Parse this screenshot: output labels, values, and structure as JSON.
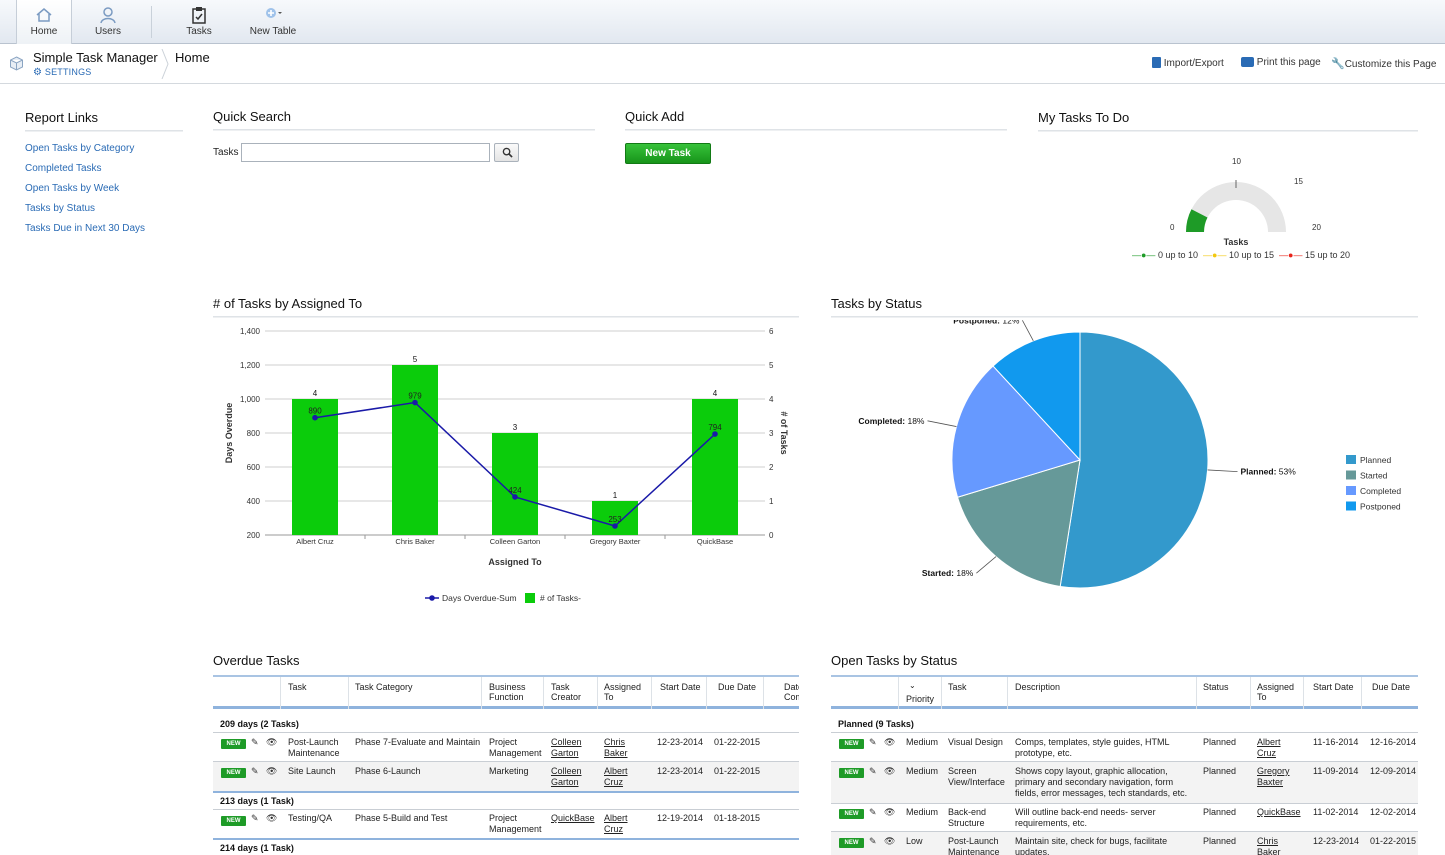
{
  "nav": {
    "items": [
      {
        "label": "Home"
      },
      {
        "label": "Users"
      },
      {
        "label": "Tasks"
      },
      {
        "label": "New Table"
      }
    ]
  },
  "appbar": {
    "app_name": "Simple Task Manager",
    "settings": "SETTINGS",
    "breadcrumb": "Home",
    "links": [
      "Import/Export",
      "Print this page",
      "Customize this Page"
    ]
  },
  "report_links": {
    "title": "Report Links",
    "items": [
      "Open Tasks by Category",
      "Completed Tasks",
      "Open Tasks by Week",
      "Tasks by Status",
      "Tasks Due in Next 30 Days"
    ]
  },
  "quick_search": {
    "title": "Quick Search",
    "label": "Tasks",
    "value": ""
  },
  "quick_add": {
    "title": "Quick Add",
    "button": "New Task"
  },
  "my_tasks": {
    "title": "My Tasks To Do",
    "gauge": {
      "value": 3,
      "min": 0,
      "max": 20,
      "ticks": [
        "0",
        "10",
        "15",
        "20"
      ],
      "label": "Tasks",
      "legend": [
        {
          "label": "0 up to 10",
          "color": "#1e9b27"
        },
        {
          "label": "10 up to 15",
          "color": "#f2c80f"
        },
        {
          "label": "15 up to 20",
          "color": "#e8231a"
        }
      ]
    }
  },
  "assigned_chart": {
    "title": "# of Tasks by Assigned To"
  },
  "status_chart": {
    "title": "Tasks by Status"
  },
  "chart_data": [
    {
      "type": "bar",
      "title": "# of Tasks by Assigned To",
      "categories": [
        "Albert Cruz",
        "Chris Baker",
        "Colleen Garton",
        "Gregory Baxter",
        "QuickBase"
      ],
      "xlabel": "Assigned To",
      "ylabel": "Days Overdue",
      "y2label": "# of Tasks",
      "ylim": [
        200,
        1400
      ],
      "y2lim": [
        0,
        6
      ],
      "yticks": [
        "200",
        "400",
        "600",
        "800",
        "1,000",
        "1,200",
        "1,400"
      ],
      "y2ticks": [
        "0",
        "1",
        "2",
        "3",
        "4",
        "5",
        "6"
      ],
      "series": [
        {
          "name": "# of Tasks-",
          "kind": "bar",
          "axis": "right",
          "color": "#0bcc0b",
          "values": [
            4,
            5,
            3,
            1,
            4
          ]
        },
        {
          "name": "Days Overdue-Sum",
          "kind": "line",
          "axis": "left",
          "color": "#1a1aa8",
          "values": [
            890,
            979,
            424,
            253,
            794
          ]
        }
      ],
      "grid": true,
      "legend": "bottom"
    },
    {
      "type": "pie",
      "title": "Tasks by Status",
      "slices": [
        {
          "label": "Planned",
          "value": 53,
          "color": "#3399cc"
        },
        {
          "label": "Started",
          "value": 18,
          "color": "#669999"
        },
        {
          "label": "Completed",
          "value": 18,
          "color": "#6699ff"
        },
        {
          "label": "Postponed",
          "value": 12,
          "color": "#1199ee"
        }
      ],
      "legend": "right"
    }
  ],
  "overdue": {
    "title": "Overdue Tasks",
    "headers": [
      "Task",
      "Task Category",
      "Business Function",
      "Task Creator",
      "Assigned To",
      "Start Date",
      "Due Date",
      "Date Compl"
    ],
    "groups": [
      {
        "label": "209 days  (2 Tasks)",
        "rows": [
          {
            "task": "Post-Launch Maintenance",
            "category": "Phase 7-Evaluate and Maintain",
            "function": "Project Management",
            "creator": "Colleen Garton",
            "assigned": "Chris Baker",
            "start": "12-23-2014",
            "due": "01-22-2015"
          },
          {
            "task": "Site Launch",
            "category": "Phase 6-Launch",
            "function": "Marketing",
            "creator": "Colleen Garton",
            "assigned": "Albert Cruz",
            "start": "12-23-2014",
            "due": "01-22-2015"
          }
        ]
      },
      {
        "label": "213 days  (1 Task)",
        "rows": [
          {
            "task": "Testing/QA",
            "category": "Phase 5-Build and Test",
            "function": "Project Management",
            "creator": "QuickBase",
            "assigned": "Albert Cruz",
            "start": "12-19-2014",
            "due": "01-18-2015"
          }
        ]
      },
      {
        "label": "214 days  (1 Task)",
        "rows": []
      }
    ]
  },
  "open_by_status": {
    "title": "Open Tasks by Status",
    "headers": [
      "Priority",
      "Task",
      "Description",
      "Status",
      "Assigned To",
      "Start Date",
      "Due Date"
    ],
    "group": "Planned  (9 Tasks)",
    "rows": [
      {
        "priority": "Medium",
        "task": "Visual Design",
        "desc": "Comps, templates, style guides, HTML prototype, etc.",
        "status": "Planned",
        "assigned": "Albert Cruz",
        "start": "11-16-2014",
        "due": "12-16-2014"
      },
      {
        "priority": "Medium",
        "task": "Screen View/Interface",
        "desc": "Shows copy layout, graphic allocation, primary and secondary navigation, form fields, error messages, tech standards, etc.",
        "status": "Planned",
        "assigned": "Gregory Baxter",
        "start": "11-09-2014",
        "due": "12-09-2014"
      },
      {
        "priority": "Medium",
        "task": "Back-end Structure",
        "desc": "Will outline back-end needs- server requirements, etc.",
        "status": "Planned",
        "assigned": "QuickBase",
        "start": "11-02-2014",
        "due": "12-02-2014"
      },
      {
        "priority": "Low",
        "task": "Post-Launch Maintenance",
        "desc": "Maintain site, check for bugs, facilitate updates.",
        "status": "Planned",
        "assigned": "Chris Baker",
        "start": "12-23-2014",
        "due": "01-22-2015"
      }
    ]
  },
  "badge_text": "NEW"
}
